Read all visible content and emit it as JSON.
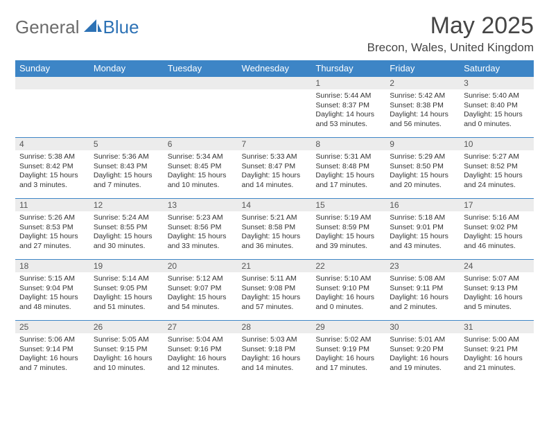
{
  "brand": {
    "general": "General",
    "blue": "Blue"
  },
  "title": "May 2025",
  "location": "Brecon, Wales, United Kingdom",
  "headers": [
    "Sunday",
    "Monday",
    "Tuesday",
    "Wednesday",
    "Thursday",
    "Friday",
    "Saturday"
  ],
  "colors": {
    "header_bg": "#3d85c6",
    "header_text": "#ffffff",
    "daynum_bg": "#ececec",
    "border": "#3d85c6",
    "title_color": "#454545",
    "logo_gray": "#6b6b6b",
    "logo_blue": "#2d72b5"
  },
  "startOffset": 4,
  "days": [
    {
      "n": 1,
      "sr": "5:44 AM",
      "ss": "8:37 PM",
      "dl": "14 hours and 53 minutes."
    },
    {
      "n": 2,
      "sr": "5:42 AM",
      "ss": "8:38 PM",
      "dl": "14 hours and 56 minutes."
    },
    {
      "n": 3,
      "sr": "5:40 AM",
      "ss": "8:40 PM",
      "dl": "15 hours and 0 minutes."
    },
    {
      "n": 4,
      "sr": "5:38 AM",
      "ss": "8:42 PM",
      "dl": "15 hours and 3 minutes."
    },
    {
      "n": 5,
      "sr": "5:36 AM",
      "ss": "8:43 PM",
      "dl": "15 hours and 7 minutes."
    },
    {
      "n": 6,
      "sr": "5:34 AM",
      "ss": "8:45 PM",
      "dl": "15 hours and 10 minutes."
    },
    {
      "n": 7,
      "sr": "5:33 AM",
      "ss": "8:47 PM",
      "dl": "15 hours and 14 minutes."
    },
    {
      "n": 8,
      "sr": "5:31 AM",
      "ss": "8:48 PM",
      "dl": "15 hours and 17 minutes."
    },
    {
      "n": 9,
      "sr": "5:29 AM",
      "ss": "8:50 PM",
      "dl": "15 hours and 20 minutes."
    },
    {
      "n": 10,
      "sr": "5:27 AM",
      "ss": "8:52 PM",
      "dl": "15 hours and 24 minutes."
    },
    {
      "n": 11,
      "sr": "5:26 AM",
      "ss": "8:53 PM",
      "dl": "15 hours and 27 minutes."
    },
    {
      "n": 12,
      "sr": "5:24 AM",
      "ss": "8:55 PM",
      "dl": "15 hours and 30 minutes."
    },
    {
      "n": 13,
      "sr": "5:23 AM",
      "ss": "8:56 PM",
      "dl": "15 hours and 33 minutes."
    },
    {
      "n": 14,
      "sr": "5:21 AM",
      "ss": "8:58 PM",
      "dl": "15 hours and 36 minutes."
    },
    {
      "n": 15,
      "sr": "5:19 AM",
      "ss": "8:59 PM",
      "dl": "15 hours and 39 minutes."
    },
    {
      "n": 16,
      "sr": "5:18 AM",
      "ss": "9:01 PM",
      "dl": "15 hours and 43 minutes."
    },
    {
      "n": 17,
      "sr": "5:16 AM",
      "ss": "9:02 PM",
      "dl": "15 hours and 46 minutes."
    },
    {
      "n": 18,
      "sr": "5:15 AM",
      "ss": "9:04 PM",
      "dl": "15 hours and 48 minutes."
    },
    {
      "n": 19,
      "sr": "5:14 AM",
      "ss": "9:05 PM",
      "dl": "15 hours and 51 minutes."
    },
    {
      "n": 20,
      "sr": "5:12 AM",
      "ss": "9:07 PM",
      "dl": "15 hours and 54 minutes."
    },
    {
      "n": 21,
      "sr": "5:11 AM",
      "ss": "9:08 PM",
      "dl": "15 hours and 57 minutes."
    },
    {
      "n": 22,
      "sr": "5:10 AM",
      "ss": "9:10 PM",
      "dl": "16 hours and 0 minutes."
    },
    {
      "n": 23,
      "sr": "5:08 AM",
      "ss": "9:11 PM",
      "dl": "16 hours and 2 minutes."
    },
    {
      "n": 24,
      "sr": "5:07 AM",
      "ss": "9:13 PM",
      "dl": "16 hours and 5 minutes."
    },
    {
      "n": 25,
      "sr": "5:06 AM",
      "ss": "9:14 PM",
      "dl": "16 hours and 7 minutes."
    },
    {
      "n": 26,
      "sr": "5:05 AM",
      "ss": "9:15 PM",
      "dl": "16 hours and 10 minutes."
    },
    {
      "n": 27,
      "sr": "5:04 AM",
      "ss": "9:16 PM",
      "dl": "16 hours and 12 minutes."
    },
    {
      "n": 28,
      "sr": "5:03 AM",
      "ss": "9:18 PM",
      "dl": "16 hours and 14 minutes."
    },
    {
      "n": 29,
      "sr": "5:02 AM",
      "ss": "9:19 PM",
      "dl": "16 hours and 17 minutes."
    },
    {
      "n": 30,
      "sr": "5:01 AM",
      "ss": "9:20 PM",
      "dl": "16 hours and 19 minutes."
    },
    {
      "n": 31,
      "sr": "5:00 AM",
      "ss": "9:21 PM",
      "dl": "16 hours and 21 minutes."
    }
  ],
  "labels": {
    "sunrise": "Sunrise: ",
    "sunset": "Sunset: ",
    "daylight": "Daylight: "
  }
}
